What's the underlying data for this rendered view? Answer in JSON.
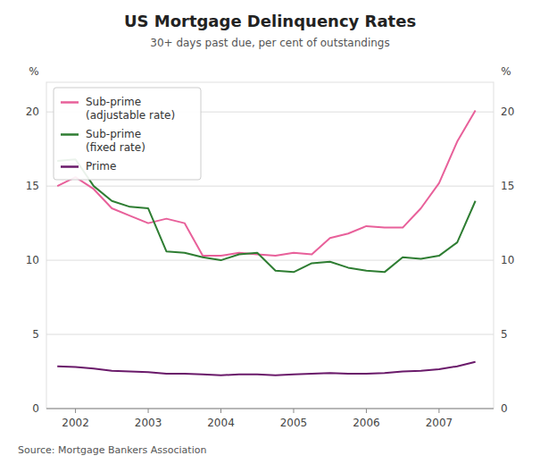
{
  "chart_data": {
    "type": "line",
    "title": "US Mortgage Delinquency Rates",
    "subtitle": "30+ days past due, per cent of outstandings",
    "source": "Source: Mortgage Bankers Association",
    "y_label": "%",
    "y2_label": "%",
    "x": [
      2001.75,
      2002.0,
      2002.25,
      2002.5,
      2002.75,
      2003.0,
      2003.25,
      2003.5,
      2003.75,
      2004.0,
      2004.25,
      2004.5,
      2004.75,
      2005.0,
      2005.25,
      2005.5,
      2005.75,
      2006.0,
      2006.25,
      2006.5,
      2006.75,
      2007.0,
      2007.25,
      2007.5
    ],
    "series": [
      {
        "name": "Sub-prime\n(adjustable rate)",
        "color": "#e8609a",
        "values": [
          15.0,
          15.6,
          14.8,
          13.5,
          13.0,
          12.5,
          12.8,
          12.5,
          10.3,
          10.3,
          10.5,
          10.4,
          10.3,
          10.5,
          10.4,
          11.5,
          11.8,
          12.3,
          12.2,
          12.2,
          13.5,
          15.2,
          18.0,
          20.1
        ]
      },
      {
        "name": "Sub-prime\n(fixed rate)",
        "color": "#2e7d32",
        "values": [
          16.7,
          16.8,
          15.0,
          14.0,
          13.6,
          13.5,
          10.6,
          10.5,
          10.2,
          10.0,
          10.4,
          10.5,
          9.3,
          9.2,
          9.8,
          9.9,
          9.5,
          9.3,
          9.2,
          10.2,
          10.1,
          10.3,
          11.2,
          14.0
        ]
      },
      {
        "name": "Prime",
        "color": "#6a1a6a",
        "values": [
          2.85,
          2.8,
          2.7,
          2.55,
          2.5,
          2.45,
          2.35,
          2.35,
          2.3,
          2.25,
          2.3,
          2.3,
          2.25,
          2.3,
          2.35,
          2.4,
          2.35,
          2.35,
          2.4,
          2.5,
          2.55,
          2.65,
          2.85,
          3.15
        ]
      }
    ],
    "xlim": [
      2001.6,
      2007.75
    ],
    "xticks": [
      2002,
      2003,
      2004,
      2005,
      2006,
      2007
    ],
    "ylim": [
      0,
      22
    ],
    "yticks": [
      0,
      5,
      10,
      15,
      20
    ],
    "y2lim": [
      0,
      22
    ],
    "y2ticks": [
      0,
      5,
      10,
      15,
      20
    ],
    "grid": true,
    "legend": "upper left"
  }
}
